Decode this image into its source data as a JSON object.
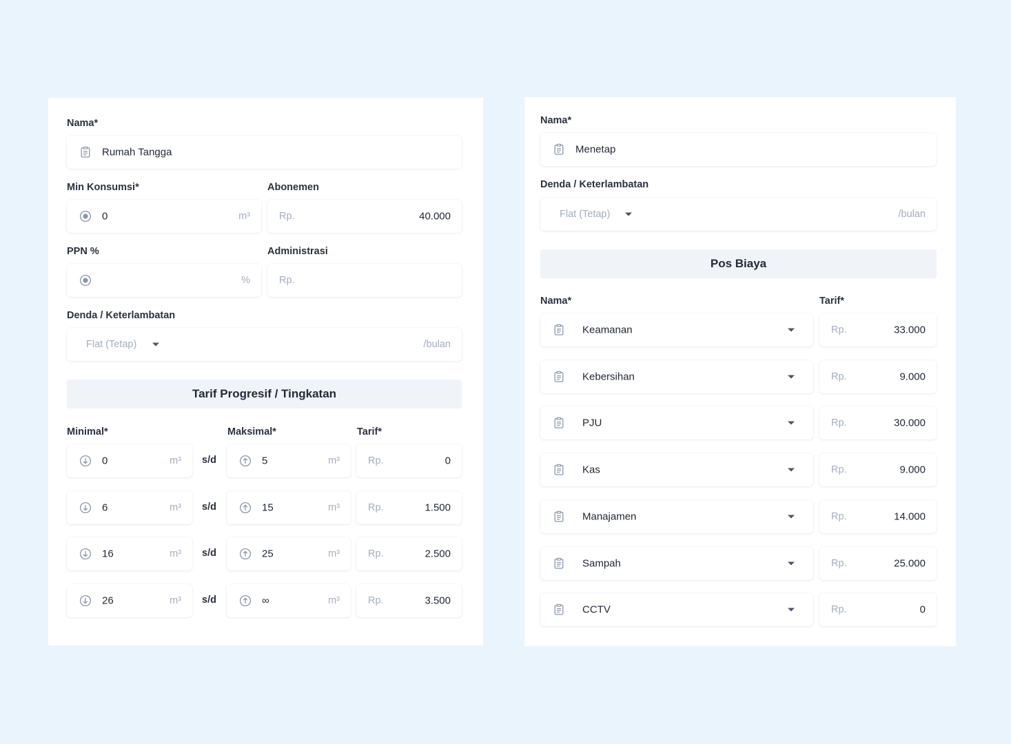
{
  "left": {
    "nama_label": "Nama*",
    "nama_value": "Rumah Tangga",
    "min_konsumsi_label": "Min Konsumsi*",
    "min_konsumsi_value": "0",
    "min_konsumsi_unit": "m³",
    "abonemen_label": "Abonemen",
    "abonemen_prefix": "Rp.",
    "abonemen_value": "40.000",
    "ppn_label": "PPN %",
    "ppn_unit": "%",
    "administrasi_label": "Administrasi",
    "administrasi_prefix": "Rp.",
    "denda_label": "Denda / Keterlambatan",
    "denda_type": "Flat (Tetap)",
    "denda_suffix": "/bulan",
    "section_title": "Tarif Progresif / Tingkatan",
    "col_minimal": "Minimal*",
    "col_maksimal": "Maksimal*",
    "col_tarif": "Tarif*",
    "unit": "m³",
    "separator": "s/d",
    "currency": "Rp.",
    "tiers": [
      {
        "min": "0",
        "max": "5",
        "tarif": "0"
      },
      {
        "min": "6",
        "max": "15",
        "tarif": "1.500"
      },
      {
        "min": "16",
        "max": "25",
        "tarif": "2.500"
      },
      {
        "min": "26",
        "max": "∞",
        "tarif": "3.500"
      }
    ]
  },
  "right": {
    "nama_label": "Nama*",
    "nama_value": "Menetap",
    "denda_label": "Denda / Keterlambatan",
    "denda_type": "Flat (Tetap)",
    "denda_suffix": "/bulan",
    "section_title": "Pos Biaya",
    "col_nama": "Nama*",
    "col_tarif": "Tarif*",
    "currency": "Rp.",
    "items": [
      {
        "name": "Keamanan",
        "tarif": "33.000"
      },
      {
        "name": "Kebersihan",
        "tarif": "9.000"
      },
      {
        "name": "PJU",
        "tarif": "30.000"
      },
      {
        "name": "Kas",
        "tarif": "9.000"
      },
      {
        "name": "Manajamen",
        "tarif": "14.000"
      },
      {
        "name": "Sampah",
        "tarif": "25.000"
      },
      {
        "name": "CCTV",
        "tarif": "0"
      }
    ]
  }
}
